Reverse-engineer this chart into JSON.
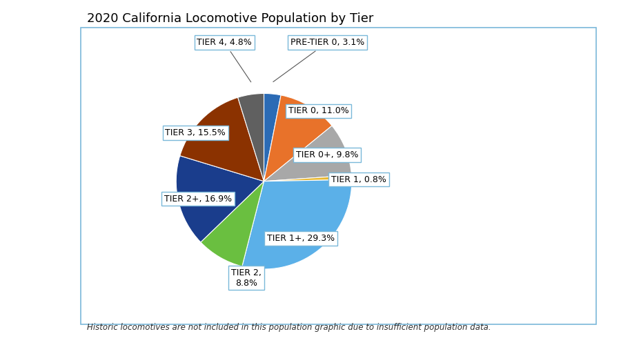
{
  "title": "2020 California Locomotive Population by Tier",
  "footnote": "Historic locomotives are not included in this population graphic due to insufficient population data.",
  "pie_slices": [
    {
      "label": "PRE-TIER 0",
      "pct": "3.1%",
      "value": 3.1,
      "color": "#2B6BB5"
    },
    {
      "label": "TIER 0",
      "pct": "11.0%",
      "value": 11.0,
      "color": "#E8722A"
    },
    {
      "label": "TIER 0+",
      "pct": "9.8%",
      "value": 9.8,
      "color": "#A8A8A8"
    },
    {
      "label": "TIER 1",
      "pct": "0.8%",
      "value": 0.8,
      "color": "#E8B830"
    },
    {
      "label": "TIER 1+",
      "pct": "29.3%",
      "value": 29.3,
      "color": "#5BB0E8"
    },
    {
      "label": "TIER 2",
      "pct": "8.8%",
      "value": 8.8,
      "color": "#6ABF40"
    },
    {
      "label": "TIER 2+",
      "pct": "16.9%",
      "value": 16.9,
      "color": "#1A3D8C"
    },
    {
      "label": "TIER 3",
      "pct": "15.5%",
      "value": 15.5,
      "color": "#8B3200"
    },
    {
      "label": "TIER 4",
      "pct": "4.8%",
      "value": 4.8,
      "color": "#606060"
    }
  ],
  "background_color": "#FFFFFF",
  "box_color": "#7AB8D9",
  "title_fontsize": 13,
  "label_fontsize": 9,
  "footnote_fontsize": 8.5
}
